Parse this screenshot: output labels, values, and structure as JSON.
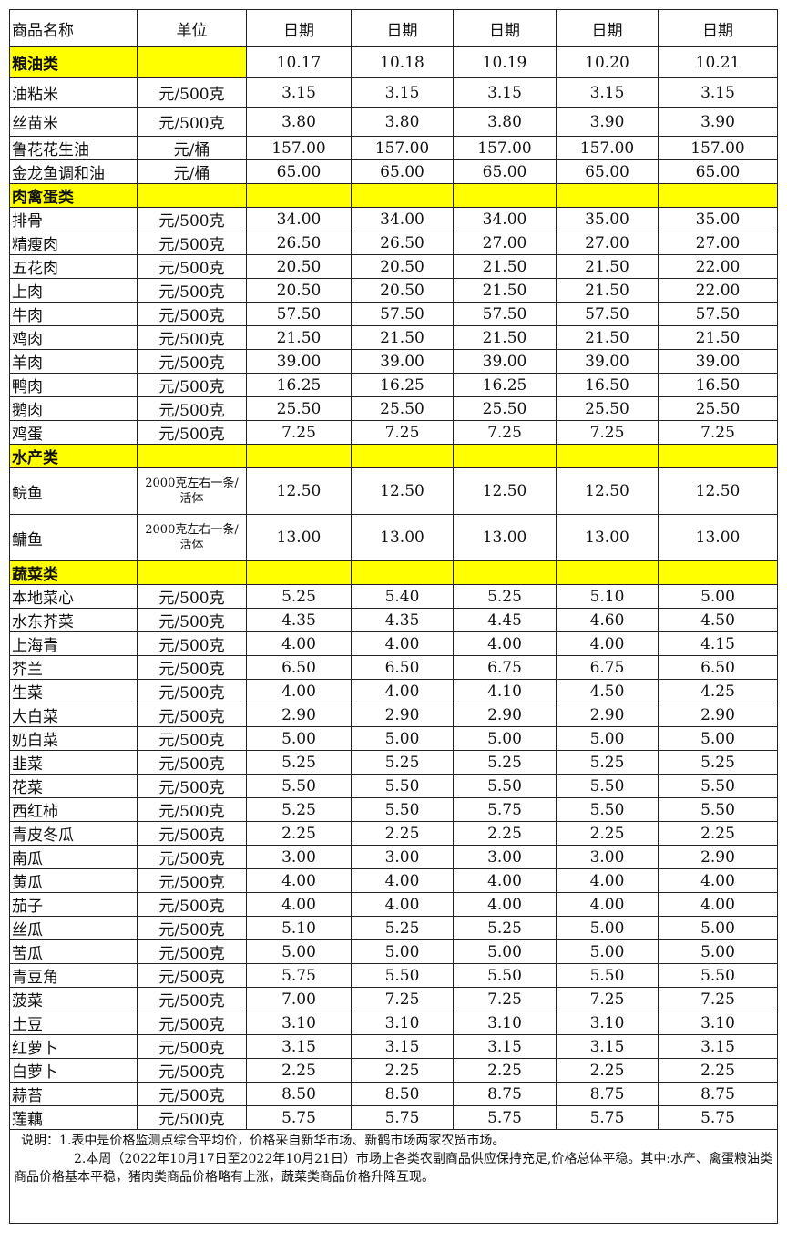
{
  "headers": [
    "商品名称",
    "单位",
    "日期",
    "日期",
    "日期",
    "日期",
    "日期"
  ],
  "dates": [
    "10.17",
    "10.18",
    "10.19",
    "10.20",
    "10.21"
  ],
  "sections": [
    {
      "name": "粮油类",
      "items": [
        {
          "name": "油粘米",
          "unit": "元/500克",
          "prices": [
            "3.15",
            "3.15",
            "3.15",
            "3.15",
            "3.15"
          ]
        },
        {
          "name": "丝苗米",
          "unit": "元/500克",
          "prices": [
            "3.80",
            "3.80",
            "3.80",
            "3.90",
            "3.90"
          ]
        },
        {
          "name": "鲁花花生油",
          "unit": "元/桶",
          "prices": [
            "157.00",
            "157.00",
            "157.00",
            "157.00",
            "157.00"
          ]
        },
        {
          "name": "金龙鱼调和油",
          "unit": "元/桶",
          "prices": [
            "65.00",
            "65.00",
            "65.00",
            "65.00",
            "65.00"
          ]
        }
      ]
    },
    {
      "name": "肉禽蛋类",
      "items": [
        {
          "name": "排骨",
          "unit": "元/500克",
          "prices": [
            "34.00",
            "34.00",
            "34.00",
            "35.00",
            "35.00"
          ]
        },
        {
          "name": "精瘦肉",
          "unit": "元/500克",
          "prices": [
            "26.50",
            "26.50",
            "27.00",
            "27.00",
            "27.00"
          ]
        },
        {
          "name": "五花肉",
          "unit": "元/500克",
          "prices": [
            "20.50",
            "20.50",
            "21.50",
            "21.50",
            "22.00"
          ]
        },
        {
          "name": "上肉",
          "unit": "元/500克",
          "prices": [
            "20.50",
            "20.50",
            "21.50",
            "21.50",
            "22.00"
          ]
        },
        {
          "name": "牛肉",
          "unit": "元/500克",
          "prices": [
            "57.50",
            "57.50",
            "57.50",
            "57.50",
            "57.50"
          ]
        },
        {
          "name": "鸡肉",
          "unit": "元/500克",
          "prices": [
            "21.50",
            "21.50",
            "21.50",
            "21.50",
            "21.50"
          ]
        },
        {
          "name": "羊肉",
          "unit": "元/500克",
          "prices": [
            "39.00",
            "39.00",
            "39.00",
            "39.00",
            "39.00"
          ]
        },
        {
          "name": "鸭肉",
          "unit": "元/500克",
          "prices": [
            "16.25",
            "16.25",
            "16.25",
            "16.50",
            "16.50"
          ]
        },
        {
          "name": "鹅肉",
          "unit": "元/500克",
          "prices": [
            "25.50",
            "25.50",
            "25.50",
            "25.50",
            "25.50"
          ]
        },
        {
          "name": "鸡蛋",
          "unit": "元/500克",
          "prices": [
            "7.25",
            "7.25",
            "7.25",
            "7.25",
            "7.25"
          ]
        }
      ]
    },
    {
      "name": "水产类",
      "items": [
        {
          "name": "鲩鱼",
          "unit": "2000克左右一条/活体",
          "prices": [
            "12.50",
            "12.50",
            "12.50",
            "12.50",
            "12.50"
          ]
        },
        {
          "name": "鳙鱼",
          "unit": "2000克左右一条/活体",
          "prices": [
            "13.00",
            "13.00",
            "13.00",
            "13.00",
            "13.00"
          ]
        }
      ]
    },
    {
      "name": "蔬菜类",
      "items": [
        {
          "name": "本地菜心",
          "unit": "元/500克",
          "prices": [
            "5.25",
            "5.40",
            "5.25",
            "5.10",
            "5.00"
          ]
        },
        {
          "name": "水东芥菜",
          "unit": "元/500克",
          "prices": [
            "4.35",
            "4.35",
            "4.45",
            "4.60",
            "4.50"
          ]
        },
        {
          "name": "上海青",
          "unit": "元/500克",
          "prices": [
            "4.00",
            "4.00",
            "4.00",
            "4.00",
            "4.15"
          ]
        },
        {
          "name": "芥兰",
          "unit": "元/500克",
          "prices": [
            "6.50",
            "6.50",
            "6.75",
            "6.75",
            "6.50"
          ]
        },
        {
          "name": "生菜",
          "unit": "元/500克",
          "prices": [
            "4.00",
            "4.00",
            "4.10",
            "4.50",
            "4.25"
          ]
        },
        {
          "name": "大白菜",
          "unit": "元/500克",
          "prices": [
            "2.90",
            "2.90",
            "2.90",
            "2.90",
            "2.90"
          ]
        },
        {
          "name": "奶白菜",
          "unit": "元/500克",
          "prices": [
            "5.00",
            "5.00",
            "5.00",
            "5.00",
            "5.00"
          ]
        },
        {
          "name": "韭菜",
          "unit": "元/500克",
          "prices": [
            "5.25",
            "5.25",
            "5.25",
            "5.25",
            "5.25"
          ]
        },
        {
          "name": "花菜",
          "unit": "元/500克",
          "prices": [
            "5.50",
            "5.50",
            "5.50",
            "5.50",
            "5.50"
          ]
        },
        {
          "name": "西红柿",
          "unit": "元/500克",
          "prices": [
            "5.25",
            "5.50",
            "5.75",
            "5.50",
            "5.50"
          ]
        },
        {
          "name": "青皮冬瓜",
          "unit": "元/500克",
          "prices": [
            "2.25",
            "2.25",
            "2.25",
            "2.25",
            "2.25"
          ]
        },
        {
          "name": "南瓜",
          "unit": "元/500克",
          "prices": [
            "3.00",
            "3.00",
            "3.00",
            "3.00",
            "2.90"
          ]
        },
        {
          "name": "黄瓜",
          "unit": "元/500克",
          "prices": [
            "4.00",
            "4.00",
            "4.00",
            "4.00",
            "4.00"
          ]
        },
        {
          "name": "茄子",
          "unit": "元/500克",
          "prices": [
            "4.00",
            "4.00",
            "4.00",
            "4.00",
            "4.00"
          ]
        },
        {
          "name": "丝瓜",
          "unit": "元/500克",
          "prices": [
            "5.10",
            "5.25",
            "5.25",
            "5.00",
            "5.00"
          ]
        },
        {
          "name": "苦瓜",
          "unit": "元/500克",
          "prices": [
            "5.00",
            "5.00",
            "5.00",
            "5.00",
            "5.00"
          ]
        },
        {
          "name": "青豆角",
          "unit": "元/500克",
          "prices": [
            "5.75",
            "5.50",
            "5.50",
            "5.50",
            "5.50"
          ]
        },
        {
          "name": "菠菜",
          "unit": "元/500克",
          "prices": [
            "7.00",
            "7.25",
            "7.25",
            "7.25",
            "7.25"
          ]
        },
        {
          "name": "土豆",
          "unit": "元/500克",
          "prices": [
            "3.10",
            "3.10",
            "3.10",
            "3.10",
            "3.10"
          ]
        },
        {
          "name": "红萝卜",
          "unit": "元/500克",
          "prices": [
            "3.15",
            "3.15",
            "3.15",
            "3.15",
            "3.15"
          ]
        },
        {
          "name": "白萝卜",
          "unit": "元/500克",
          "prices": [
            "2.25",
            "2.25",
            "2.25",
            "2.25",
            "2.25"
          ]
        },
        {
          "name": "蒜苔",
          "unit": "元/500克",
          "prices": [
            "8.50",
            "8.50",
            "8.75",
            "8.75",
            "8.75"
          ]
        },
        {
          "name": "莲藕",
          "unit": "元/500克",
          "prices": [
            "5.75",
            "5.75",
            "5.75",
            "5.75",
            "5.75"
          ]
        }
      ]
    }
  ],
  "notes": [
    "说明：1.表中是价格监测点综合平均价，价格采自新华市场、新鹤市场两家农贸市场。",
    "2.本周（2022年10月17日至2022年10月21日）市场上各类农副商品供应保持充足,价格总体平稳。其中:水产、禽蛋粮油类商品价格基本平稳，猪肉类商品价格略有上涨，蔬菜类商品价格升降互现。"
  ]
}
